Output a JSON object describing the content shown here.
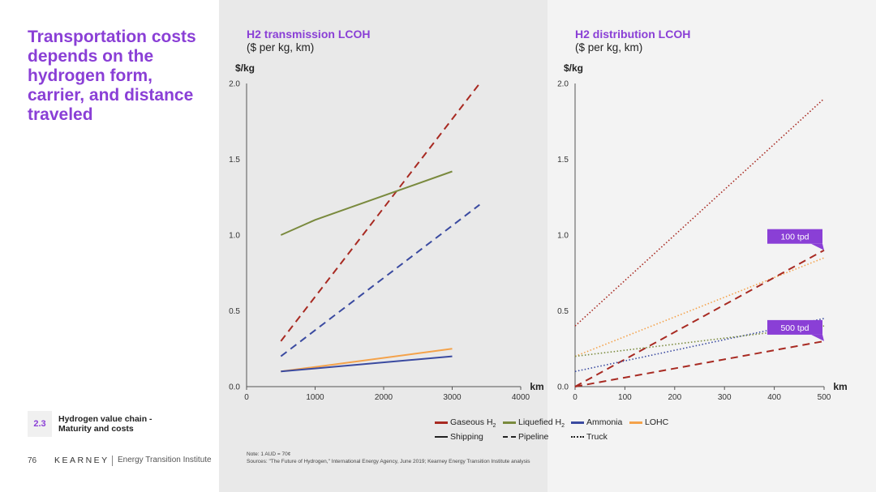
{
  "headline": "Transportation costs depends on the hydrogen form, carrier, and distance traveled",
  "section": {
    "number": "2.3",
    "line1": "Hydrogen value chain -",
    "line2": "Maturity and costs"
  },
  "footer": {
    "page": "76",
    "brand": "KEARNEY",
    "institute": "Energy Transition Institute"
  },
  "notes": {
    "note": "Note: 1 AUD = 70¢",
    "sources": "Sources: \"The Future of Hydrogen,\" International Energy Agency, June 2019; Kearney Energy Transition Institute analysis"
  },
  "colors": {
    "gaseous": "#a82a22",
    "liquefied": "#7a8a3e",
    "ammonia": "#3a4aa0",
    "lohc": "#f4a24a",
    "tag": "#8a3fd6"
  },
  "legend": {
    "carriers": [
      {
        "key": "gaseous",
        "label": "Gaseous H",
        "sub": "2"
      },
      {
        "key": "liquefied",
        "label": "Liquefied H",
        "sub": "2"
      },
      {
        "key": "ammonia",
        "label": "Ammonia",
        "sub": ""
      },
      {
        "key": "lohc",
        "label": "LOHC",
        "sub": ""
      }
    ],
    "modes": [
      {
        "style": "solid",
        "label": "Shipping"
      },
      {
        "style": "dashed",
        "label": "Pipeline"
      },
      {
        "style": "dotted",
        "label": "Truck"
      }
    ]
  },
  "chart_data": [
    {
      "type": "line",
      "title": "H2 transmission LCOH",
      "subtitle": "($ per kg, km)",
      "ylabel": "$/kg",
      "xlabel": "km",
      "xlim": [
        0,
        4000
      ],
      "ylim": [
        0,
        2.0
      ],
      "xticks": [
        "0",
        "1000",
        "2000",
        "3000",
        "4000"
      ],
      "yticks": [
        "0.0",
        "0.5",
        "1.0",
        "1.5",
        "2.0"
      ],
      "series": [
        {
          "carrier": "gaseous",
          "mode": "dashed",
          "x": [
            500,
            3400
          ],
          "y": [
            0.3,
            2.0
          ]
        },
        {
          "carrier": "ammonia",
          "mode": "dashed",
          "x": [
            500,
            3400
          ],
          "y": [
            0.2,
            1.2
          ]
        },
        {
          "carrier": "liquefied",
          "mode": "solid",
          "x": [
            500,
            1000,
            3000
          ],
          "y": [
            1.0,
            1.1,
            1.42
          ]
        },
        {
          "carrier": "lohc",
          "mode": "solid",
          "x": [
            500,
            3000
          ],
          "y": [
            0.1,
            0.25
          ]
        },
        {
          "carrier": "ammonia",
          "mode": "solid",
          "x": [
            500,
            3000
          ],
          "y": [
            0.1,
            0.2
          ]
        }
      ]
    },
    {
      "type": "line",
      "title": "H2 distribution LCOH",
      "subtitle": "($ per kg, km)",
      "ylabel": "$/kg",
      "xlabel": "km",
      "xlim": [
        0,
        500
      ],
      "ylim": [
        0,
        2.0
      ],
      "xticks": [
        "0",
        "100",
        "200",
        "300",
        "400",
        "500"
      ],
      "yticks": [
        "0.0",
        "0.5",
        "1.0",
        "1.5",
        "2.0"
      ],
      "series": [
        {
          "carrier": "gaseous",
          "mode": "dotted",
          "x": [
            0,
            500
          ],
          "y": [
            0.4,
            1.9
          ]
        },
        {
          "carrier": "lohc",
          "mode": "dotted",
          "x": [
            0,
            500
          ],
          "y": [
            0.2,
            0.85
          ]
        },
        {
          "carrier": "gaseous",
          "mode": "dashed",
          "x": [
            0,
            500
          ],
          "y": [
            0.0,
            0.9
          ]
        },
        {
          "carrier": "ammonia",
          "mode": "dotted",
          "x": [
            0,
            500
          ],
          "y": [
            0.1,
            0.45
          ]
        },
        {
          "carrier": "liquefied",
          "mode": "dotted",
          "x": [
            0,
            500
          ],
          "y": [
            0.2,
            0.4
          ]
        },
        {
          "carrier": "gaseous",
          "mode": "dashed",
          "x": [
            0,
            500
          ],
          "y": [
            0.0,
            0.3
          ]
        }
      ],
      "annotations": [
        {
          "text": "100 tpd",
          "x": 500,
          "y": 0.9
        },
        {
          "text": "500 tpd",
          "x": 500,
          "y": 0.3
        }
      ]
    }
  ]
}
